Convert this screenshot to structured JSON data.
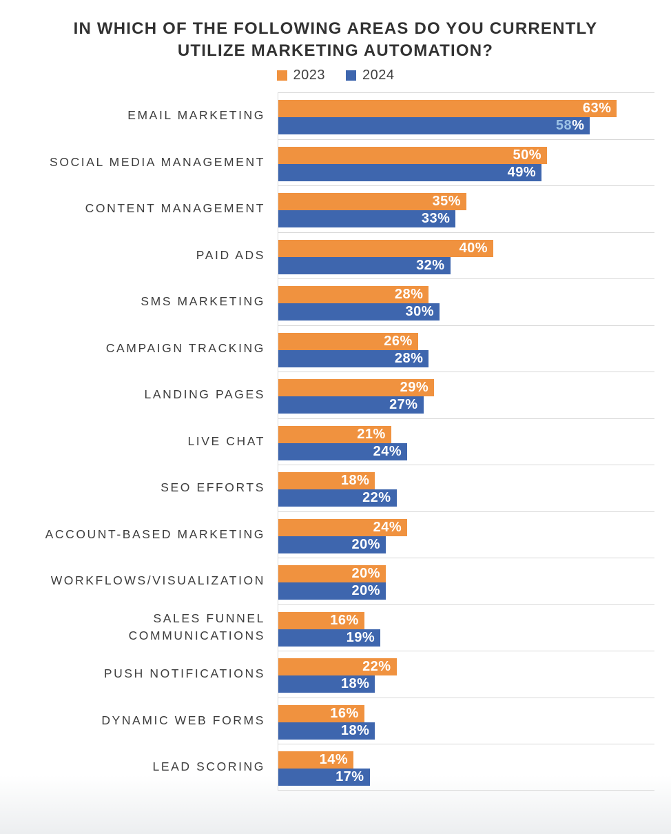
{
  "title": {
    "line1": "IN WHICH OF THE FOLLOWING AREAS DO YOU CURRENTLY",
    "line2": "UTILIZE MARKETING AUTOMATION?"
  },
  "legend": [
    {
      "label": "2023",
      "color": "#f0923f"
    },
    {
      "label": "2024",
      "color": "#3e66ae"
    }
  ],
  "colors": {
    "bar_2023": "#f0923f",
    "bar_2024": "#3e66ae",
    "grid_line": "#d8d8d8",
    "category_text": "#3d3d3d",
    "title_text": "#323232",
    "value_label_default": "#ffffff",
    "value_label_special": "#9cc2e5"
  },
  "chart_data": {
    "type": "bar",
    "orientation": "horizontal",
    "grouped": true,
    "title": "IN WHICH OF THE FOLLOWING AREAS DO YOU CURRENTLY UTILIZE MARKETING AUTOMATION?",
    "xlabel": "",
    "ylabel": "",
    "xlim": [
      0,
      70
    ],
    "grid": "row-separators",
    "legend_position": "top-center",
    "value_suffix": "%",
    "categories": [
      "EMAIL MARKETING",
      "SOCIAL MEDIA MANAGEMENT",
      "CONTENT MANAGEMENT",
      "PAID ADS",
      "SMS MARKETING",
      "CAMPAIGN TRACKING",
      "LANDING PAGES",
      "LIVE CHAT",
      "SEO EFFORTS",
      "ACCOUNT-BASED MARKETING",
      "WORKFLOWS/VISUALIZATION",
      "SALES FUNNEL\nCOMMUNICATIONS",
      "PUSH NOTIFICATIONS",
      "DYNAMIC WEB FORMS",
      "LEAD SCORING"
    ],
    "series": [
      {
        "name": "2023",
        "color": "#f0923f",
        "values": [
          63,
          50,
          35,
          40,
          28,
          26,
          29,
          21,
          18,
          24,
          20,
          16,
          22,
          16,
          14
        ]
      },
      {
        "name": "2024",
        "color": "#3e66ae",
        "values": [
          58,
          49,
          33,
          32,
          30,
          28,
          27,
          24,
          22,
          20,
          20,
          19,
          18,
          18,
          17
        ]
      }
    ],
    "label_overrides": [
      {
        "series": 1,
        "index": 0,
        "digits_color": "#9cc2e5"
      }
    ]
  }
}
